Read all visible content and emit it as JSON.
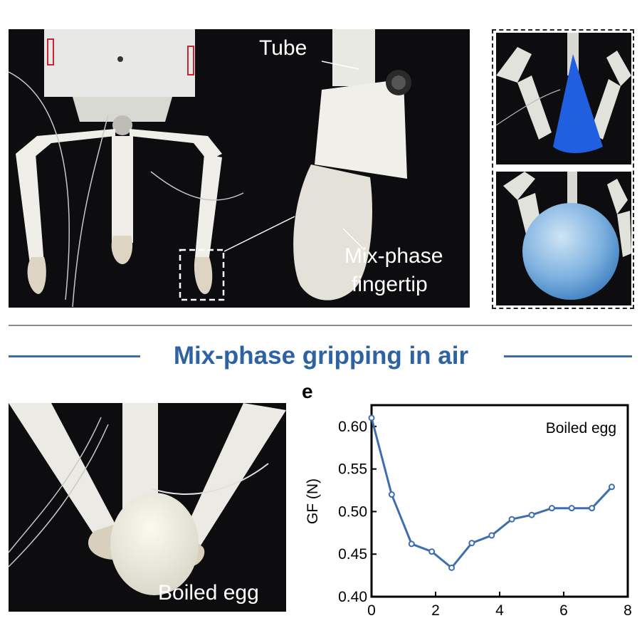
{
  "panel_top_left": {
    "callout_tube": "Tube",
    "callout_fingertip_line1": "Mix-phase",
    "callout_fingertip_line2": "fingertip"
  },
  "section_title": "Mix-phase gripping in air",
  "panel_bottom_left": {
    "caption": "Boiled egg"
  },
  "panel_e": {
    "letter": "e"
  },
  "colors": {
    "accent": "#2e63a3",
    "series": "#3f6eb0",
    "cone": "#1f5fe0",
    "sphere": "#7fb2e0"
  },
  "chart_data": {
    "type": "line",
    "annotation": "Boiled egg",
    "ylabel": "GF (N)",
    "xlabel": "",
    "xlim": [
      0,
      8
    ],
    "ylim": [
      0.4,
      0.625
    ],
    "xticks": [
      "0",
      "2",
      "4",
      "6",
      "8"
    ],
    "yticks": [
      "0.40",
      "0.45",
      "0.50",
      "0.55",
      "0.60"
    ],
    "xtick_values": [
      0,
      2,
      4,
      6,
      8
    ],
    "ytick_values": [
      0.4,
      0.45,
      0.5,
      0.55,
      0.6
    ],
    "series": [
      {
        "x": [
          0,
          0.63,
          1.25,
          1.88,
          2.5,
          3.13,
          3.75,
          4.38,
          5.0,
          5.63,
          6.25,
          6.88,
          7.5
        ],
        "values": [
          0.61,
          0.52,
          0.462,
          0.453,
          0.434,
          0.463,
          0.472,
          0.491,
          0.496,
          0.504,
          0.504,
          0.504,
          0.529
        ]
      }
    ]
  }
}
